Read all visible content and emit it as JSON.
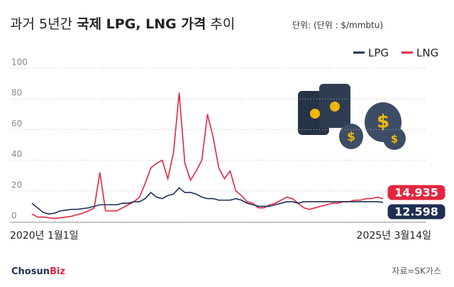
{
  "chart_data": {
    "type": "line",
    "title": [
      "과거 5년간",
      "국제 LPG, LNG 가격",
      "추이"
    ],
    "subtitle": "단위: (단위 : $/mmbtu)",
    "categories": [
      "2020년 1월1일",
      null,
      null,
      null,
      null,
      null,
      null,
      null,
      null,
      null,
      null,
      null,
      null,
      null,
      null,
      null,
      null,
      null,
      null,
      null,
      null,
      null,
      null,
      null,
      null,
      null,
      null,
      null,
      null,
      null,
      null,
      null,
      null,
      null,
      null,
      null,
      null,
      null,
      null,
      null,
      null,
      null,
      null,
      null,
      null,
      null,
      null,
      null,
      null,
      null,
      null,
      null,
      null,
      null,
      null,
      null,
      null,
      null,
      null,
      null,
      null,
      null,
      "2025년 3월14일"
    ],
    "series": [
      {
        "name": "LPG",
        "color": "#1f2f52",
        "values": [
          12,
          9,
          6,
          5,
          5.5,
          7,
          7.5,
          8,
          8,
          8.5,
          9,
          10,
          11,
          11,
          11,
          11,
          12,
          12,
          13,
          13,
          15,
          19,
          16,
          15,
          17,
          18,
          22,
          19,
          19,
          18,
          16,
          15,
          15,
          14,
          14,
          14,
          15,
          14,
          12,
          11,
          10,
          10,
          10,
          11,
          12,
          13,
          13,
          12,
          13,
          13,
          13,
          13,
          13,
          13,
          13,
          13,
          13,
          13,
          13,
          13,
          13,
          13,
          12.598
        ]
      },
      {
        "name": "LNG",
        "color": "#e3263f",
        "values": [
          5,
          3,
          3,
          2.5,
          2,
          2.5,
          3,
          3.5,
          4.5,
          5.5,
          7,
          9,
          32,
          7,
          7,
          7,
          9,
          11,
          13,
          16,
          25,
          35,
          38,
          40,
          28,
          45,
          84,
          38,
          27,
          33,
          40,
          70,
          55,
          35,
          28,
          33,
          20,
          17,
          13,
          12,
          9,
          9,
          11,
          12,
          14,
          16,
          15,
          12,
          9,
          8,
          9,
          10,
          11,
          12,
          12,
          13,
          13,
          14,
          14,
          15,
          15,
          16,
          14.935
        ]
      }
    ],
    "ylim": [
      0,
      100
    ],
    "yticks": [
      0,
      20,
      40,
      60,
      80,
      100
    ],
    "grid": true,
    "legend": "top-right",
    "source": "자료=SK가스",
    "logo": [
      "Chosun",
      "Biz"
    ]
  }
}
